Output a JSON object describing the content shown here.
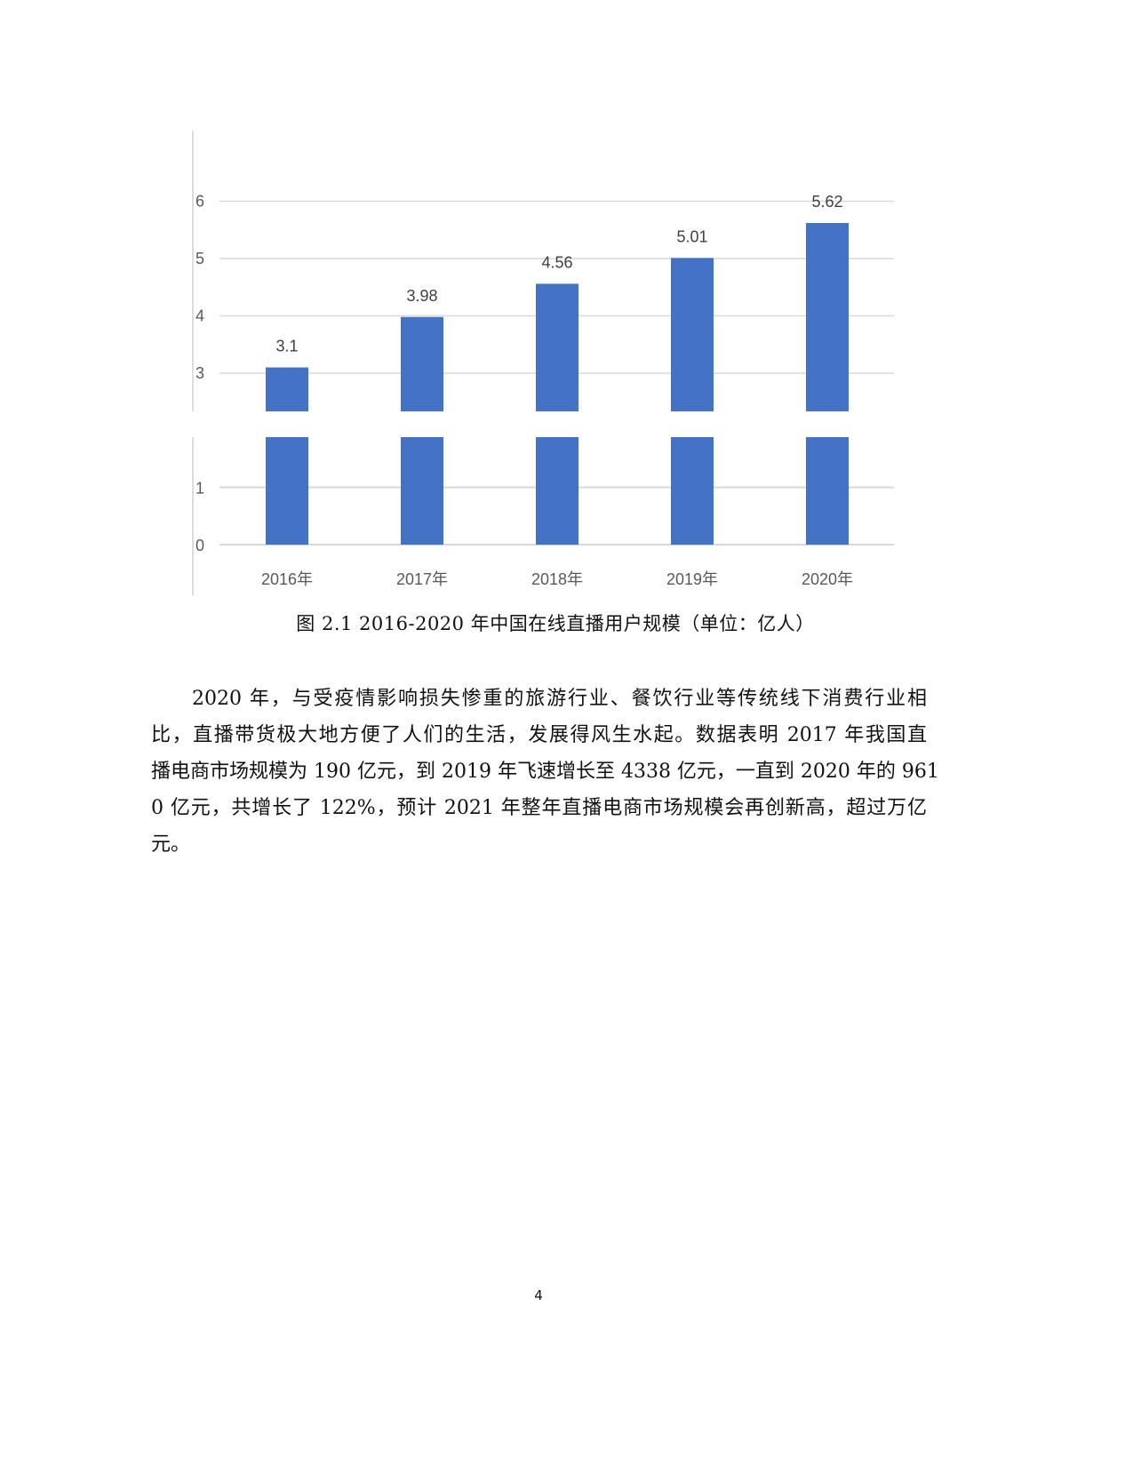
{
  "chart_data": {
    "type": "bar",
    "categories": [
      "2016年",
      "2017年",
      "2018年",
      "2019年",
      "2020年"
    ],
    "values": [
      3.1,
      3.98,
      4.56,
      5.01,
      5.62
    ],
    "data_labels": [
      "3.1",
      "3.98",
      "4.56",
      "5.01",
      "5.62"
    ],
    "broken_axis": true,
    "upper_panel": {
      "ylim": [
        2.33,
        7.25
      ],
      "ticks": [
        "3",
        "4",
        "5",
        "6"
      ]
    },
    "lower_panel": {
      "ylim": [
        0,
        1.89
      ],
      "ticks": [
        "0",
        "1"
      ]
    },
    "grid": true,
    "legend": "none",
    "bar_color": "#4472C4",
    "grid_color": "#D9D9D9"
  },
  "caption": "图 2.1 2016-2020 年中国在线直播用户规模（单位：亿人）",
  "paragraph": {
    "lines": [
      "2020 年，与受疫情影响损失惨重的旅游行业、餐饮行业等传统线下消费行业相",
      "比，直播带货极大地方便了人们的生活，发展得风生水起。数据表明 2017 年我国直",
      "播电商市场规模为 190 亿元，到 2019 年飞速增长至 4338 亿元，一直到 2020 年的 961",
      "0 亿元，共增长了 122%，预计 2021 年整年直播电商市场规模会再创新高，超过万亿",
      "元。"
    ]
  },
  "page_number": "4"
}
